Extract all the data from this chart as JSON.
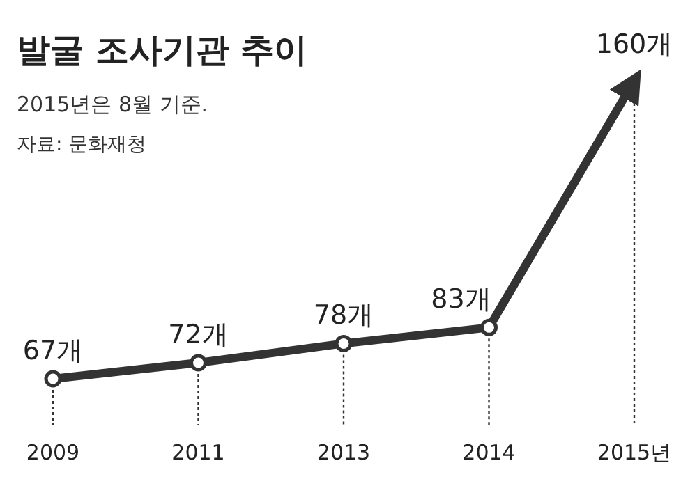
{
  "chart_data": {
    "type": "line",
    "title": "발굴 조사기관 추이",
    "subtitle": "2015년은 8월 기준.",
    "annotations": [
      "자료: 문화재청"
    ],
    "categories": [
      "2009",
      "2011",
      "2013",
      "2014",
      "2015년"
    ],
    "series": [
      {
        "color": "#333333",
        "values": [
          67,
          72,
          78,
          83,
          160
        ],
        "value_labels": [
          "67개",
          "72개",
          "78개",
          "83개",
          "160개"
        ]
      }
    ],
    "marker": "circle",
    "grid": "x"
  }
}
